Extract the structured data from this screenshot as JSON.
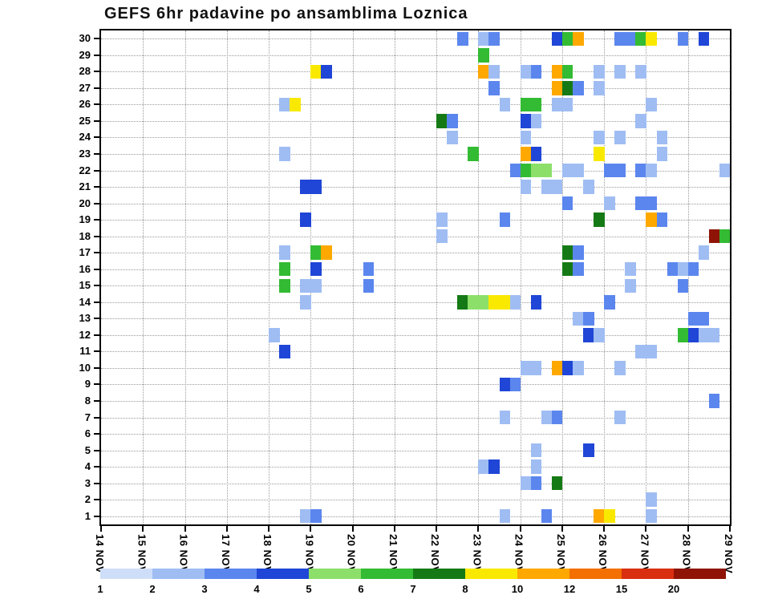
{
  "title": "GEFS 6hr padavine po ansamblima Loznica",
  "chart_data": {
    "type": "heatmap",
    "title": "GEFS 6hr padavine po ansamblima Loznica",
    "xlabel": "",
    "ylabel": "",
    "grid": true,
    "legend_position": "bottom",
    "x_axis": {
      "tick_labels": [
        "14 NOV",
        "15 NOV",
        "16 NOV",
        "17 NOV",
        "18 NOV",
        "19 NOV",
        "20 NOV",
        "21 NOV",
        "22 NOV",
        "23 NOV",
        "24 NOV",
        "25 NOV",
        "26 NOV",
        "27 NOV",
        "28 NOV",
        "29 NOV"
      ],
      "steps_per_day": 4,
      "n_steps": 60,
      "step_hours": 6
    },
    "y_tick_labels": [
      "30",
      "29",
      "28",
      "27",
      "26",
      "25",
      "24",
      "23",
      "22",
      "21",
      "20",
      "19",
      "18",
      "17",
      "16",
      "15",
      "14",
      "13",
      "12",
      "11",
      "10",
      "9",
      "8",
      "7",
      "6",
      "5",
      "4",
      "3",
      "2",
      "1"
    ],
    "levels": [
      1,
      2,
      3,
      4,
      5,
      6,
      7,
      8,
      10,
      12,
      15,
      20
    ],
    "palette": {
      "1": "#cfdef8",
      "2": "#9fbdf3",
      "3": "#5b86ee",
      "4": "#1f46d6",
      "5": "#8ce06a",
      "6": "#33bb33",
      "7": "#157a15",
      "8": "#f9e900",
      "10": "#ffa800",
      "12": "#f36f00",
      "15": "#d92e10",
      "20": "#8f1406"
    },
    "colorbar_labels": [
      "1",
      "2",
      "3",
      "4",
      "5",
      "6",
      "7",
      "8",
      "10",
      "12",
      "15",
      "20"
    ],
    "cells_format": "[ensemble_member, time_step_6h_from_14NOV00, prec_level_mm]",
    "cells": [
      [
        30,
        34,
        3
      ],
      [
        30,
        36,
        2
      ],
      [
        30,
        37,
        3
      ],
      [
        30,
        43,
        4
      ],
      [
        30,
        44,
        6
      ],
      [
        30,
        45,
        10
      ],
      [
        30,
        49,
        3
      ],
      [
        30,
        50,
        3
      ],
      [
        30,
        51,
        6
      ],
      [
        30,
        52,
        8
      ],
      [
        30,
        55,
        3
      ],
      [
        30,
        57,
        4
      ],
      [
        29,
        36,
        6
      ],
      [
        28,
        20,
        8
      ],
      [
        28,
        21,
        4
      ],
      [
        28,
        36,
        10
      ],
      [
        28,
        37,
        2
      ],
      [
        28,
        40,
        2
      ],
      [
        28,
        41,
        3
      ],
      [
        28,
        43,
        10
      ],
      [
        28,
        44,
        6
      ],
      [
        28,
        47,
        2
      ],
      [
        28,
        49,
        2
      ],
      [
        28,
        51,
        2
      ],
      [
        27,
        37,
        3
      ],
      [
        27,
        43,
        10
      ],
      [
        27,
        44,
        7
      ],
      [
        27,
        45,
        3
      ],
      [
        27,
        47,
        2
      ],
      [
        26,
        17,
        2
      ],
      [
        26,
        18,
        8
      ],
      [
        26,
        38,
        2
      ],
      [
        26,
        40,
        6
      ],
      [
        26,
        41,
        6
      ],
      [
        26,
        43,
        2
      ],
      [
        26,
        44,
        2
      ],
      [
        26,
        52,
        2
      ],
      [
        25,
        32,
        7
      ],
      [
        25,
        33,
        3
      ],
      [
        25,
        40,
        4
      ],
      [
        25,
        41,
        2
      ],
      [
        25,
        51,
        2
      ],
      [
        24,
        33,
        2
      ],
      [
        24,
        40,
        2
      ],
      [
        24,
        47,
        2
      ],
      [
        24,
        49,
        2
      ],
      [
        24,
        53,
        2
      ],
      [
        23,
        17,
        2
      ],
      [
        23,
        35,
        6
      ],
      [
        23,
        40,
        10
      ],
      [
        23,
        41,
        4
      ],
      [
        23,
        47,
        8
      ],
      [
        23,
        53,
        2
      ],
      [
        22,
        39,
        3
      ],
      [
        22,
        40,
        6
      ],
      [
        22,
        41,
        5
      ],
      [
        22,
        42,
        5
      ],
      [
        22,
        44,
        2
      ],
      [
        22,
        45,
        2
      ],
      [
        22,
        48,
        3
      ],
      [
        22,
        49,
        3
      ],
      [
        22,
        51,
        3
      ],
      [
        22,
        52,
        2
      ],
      [
        22,
        59,
        2
      ],
      [
        21,
        19,
        4
      ],
      [
        21,
        20,
        4
      ],
      [
        21,
        40,
        2
      ],
      [
        21,
        42,
        2
      ],
      [
        21,
        43,
        2
      ],
      [
        21,
        46,
        2
      ],
      [
        20,
        44,
        3
      ],
      [
        20,
        48,
        2
      ],
      [
        20,
        51,
        3
      ],
      [
        20,
        52,
        3
      ],
      [
        19,
        19,
        4
      ],
      [
        19,
        32,
        2
      ],
      [
        19,
        38,
        3
      ],
      [
        19,
        47,
        7
      ],
      [
        19,
        52,
        10
      ],
      [
        19,
        53,
        3
      ],
      [
        18,
        32,
        2
      ],
      [
        18,
        58,
        20
      ],
      [
        18,
        59,
        6
      ],
      [
        17,
        17,
        2
      ],
      [
        17,
        20,
        6
      ],
      [
        17,
        21,
        10
      ],
      [
        17,
        44,
        7
      ],
      [
        17,
        45,
        3
      ],
      [
        17,
        57,
        2
      ],
      [
        16,
        17,
        6
      ],
      [
        16,
        20,
        4
      ],
      [
        16,
        25,
        3
      ],
      [
        16,
        44,
        7
      ],
      [
        16,
        45,
        3
      ],
      [
        16,
        50,
        2
      ],
      [
        16,
        54,
        3
      ],
      [
        16,
        55,
        2
      ],
      [
        16,
        56,
        3
      ],
      [
        15,
        17,
        6
      ],
      [
        15,
        19,
        2
      ],
      [
        15,
        20,
        2
      ],
      [
        15,
        25,
        3
      ],
      [
        15,
        50,
        2
      ],
      [
        15,
        55,
        3
      ],
      [
        14,
        19,
        2
      ],
      [
        14,
        34,
        7
      ],
      [
        14,
        35,
        5
      ],
      [
        14,
        36,
        5
      ],
      [
        14,
        37,
        8
      ],
      [
        14,
        38,
        8
      ],
      [
        14,
        39,
        2
      ],
      [
        14,
        41,
        4
      ],
      [
        14,
        48,
        3
      ],
      [
        13,
        45,
        2
      ],
      [
        13,
        46,
        3
      ],
      [
        13,
        56,
        3
      ],
      [
        13,
        57,
        3
      ],
      [
        12,
        16,
        2
      ],
      [
        12,
        46,
        4
      ],
      [
        12,
        47,
        2
      ],
      [
        12,
        55,
        6
      ],
      [
        12,
        56,
        4
      ],
      [
        12,
        57,
        2
      ],
      [
        12,
        58,
        2
      ],
      [
        11,
        17,
        4
      ],
      [
        11,
        51,
        2
      ],
      [
        11,
        52,
        2
      ],
      [
        10,
        40,
        2
      ],
      [
        10,
        41,
        2
      ],
      [
        10,
        43,
        10
      ],
      [
        10,
        44,
        4
      ],
      [
        10,
        45,
        2
      ],
      [
        10,
        49,
        2
      ],
      [
        9,
        38,
        4
      ],
      [
        9,
        39,
        3
      ],
      [
        8,
        58,
        3
      ],
      [
        7,
        38,
        2
      ],
      [
        7,
        42,
        2
      ],
      [
        7,
        43,
        3
      ],
      [
        7,
        49,
        2
      ],
      [
        5,
        41,
        2
      ],
      [
        5,
        46,
        4
      ],
      [
        4,
        36,
        2
      ],
      [
        4,
        37,
        4
      ],
      [
        4,
        41,
        2
      ],
      [
        3,
        40,
        2
      ],
      [
        3,
        41,
        3
      ],
      [
        3,
        43,
        7
      ],
      [
        2,
        52,
        2
      ],
      [
        1,
        19,
        2
      ],
      [
        1,
        20,
        3
      ],
      [
        1,
        38,
        2
      ],
      [
        1,
        42,
        3
      ],
      [
        1,
        47,
        10
      ],
      [
        1,
        48,
        8
      ],
      [
        1,
        52,
        2
      ]
    ]
  }
}
